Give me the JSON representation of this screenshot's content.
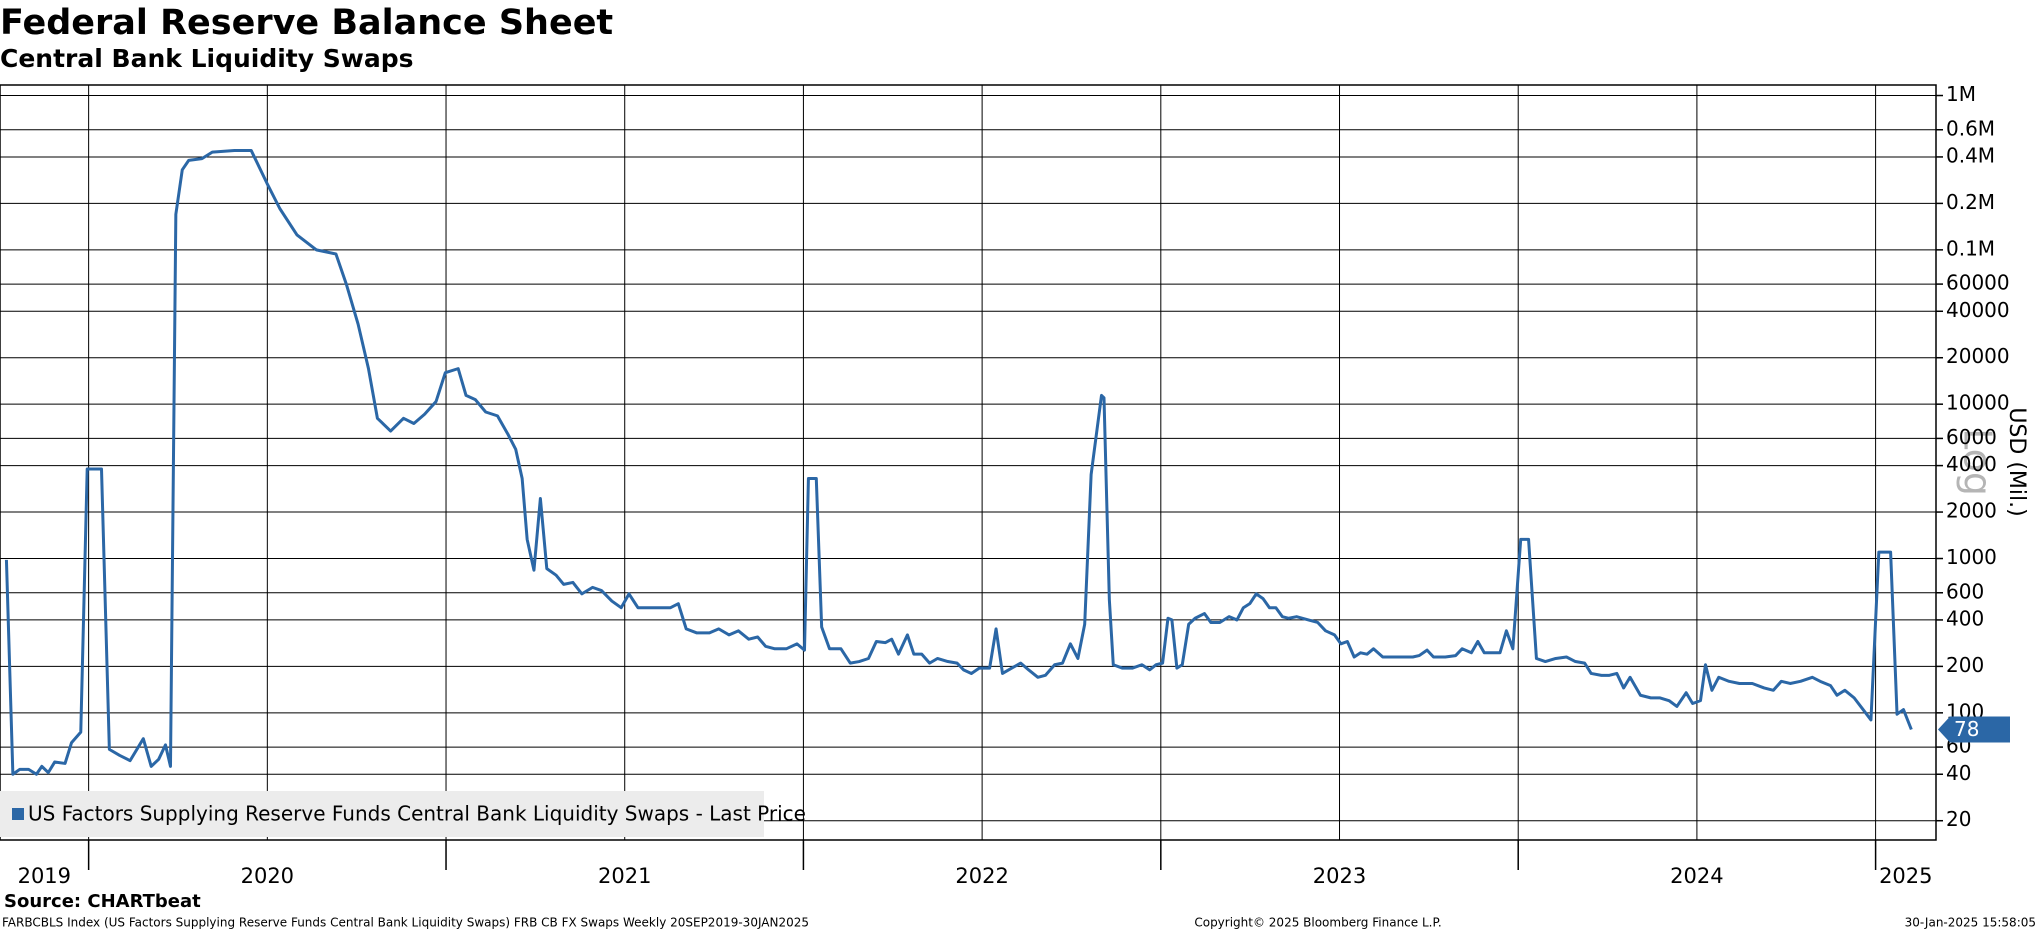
{
  "chart_data": {
    "type": "line",
    "title": "Federal Reserve Balance Sheet",
    "subtitle": "Central Bank Liquidity Swaps",
    "y_label": "USD (Mil.)",
    "scale_label": "Log",
    "log_scale": true,
    "grid": true,
    "legend_position": "lower-left",
    "source": "Source: CHARTbeat",
    "footer_left": "FARBCBLS Index (US Factors Supplying Reserve Funds Central Bank Liquidity Swaps) FRB CB FX Swaps  Weekly 20SEP2019-30JAN2025",
    "footer_center": "Copyright© 2025 Bloomberg Finance L.P.",
    "footer_right": "30-Jan-2025 15:58:05",
    "xlim": [
      2019.752,
      2025.169
    ],
    "xgrid": [
      2020,
      2020.5,
      2021,
      2021.5,
      2022,
      2022.5,
      2023,
      2023.5,
      2024,
      2024.5,
      2025
    ],
    "years": [
      "2019",
      "2020",
      "2021",
      "2022",
      "2023",
      "2024",
      "2025"
    ],
    "ylim": [
      15,
      1170000
    ],
    "yticks": [
      {
        "value": 1000000,
        "label": "1M"
      },
      {
        "value": 600000,
        "label": "0.6M"
      },
      {
        "value": 400000,
        "label": "0.4M"
      },
      {
        "value": 200000,
        "label": "0.2M"
      },
      {
        "value": 100000,
        "label": "0.1M"
      },
      60000,
      40000,
      20000,
      10000,
      6000,
      4000,
      2000,
      1000,
      600,
      400,
      200,
      100,
      60,
      40,
      20
    ],
    "series": [
      {
        "name": "US Factors Supplying Reserve Funds Central Bank Liquidity Swaps - Last Price",
        "color": "#2b67a6",
        "x": [
          2019.77,
          2019.788,
          2019.807,
          2019.832,
          2019.854,
          2019.869,
          2019.887,
          2019.905,
          2019.934,
          2019.952,
          2019.978,
          2019.996,
          2020.036,
          2020.058,
          2020.087,
          2020.116,
          2020.153,
          2020.175,
          2020.196,
          2020.215,
          2020.229,
          2020.244,
          2020.262,
          2020.28,
          2020.317,
          2020.346,
          2020.408,
          2020.455,
          2020.499,
          2020.535,
          2020.583,
          2020.637,
          2020.692,
          2020.721,
          2020.754,
          2020.783,
          2020.808,
          2020.845,
          2020.881,
          2020.91,
          2020.94,
          2020.972,
          2020.998,
          2021.034,
          2021.056,
          2021.082,
          2021.111,
          2021.144,
          2021.173,
          2021.195,
          2021.213,
          2021.227,
          2021.246,
          2021.264,
          2021.282,
          2021.308,
          2021.329,
          2021.355,
          2021.38,
          2021.41,
          2021.435,
          2021.464,
          2021.49,
          2021.512,
          2021.537,
          2021.566,
          2021.599,
          2021.628,
          2021.65,
          2021.672,
          2021.701,
          2021.737,
          2021.763,
          2021.792,
          2021.818,
          2021.847,
          2021.872,
          2021.894,
          2021.92,
          2021.952,
          2021.982,
          2022.003,
          2022.014,
          2022.036,
          2022.051,
          2022.073,
          2022.105,
          2022.131,
          2022.156,
          2022.182,
          2022.204,
          2022.229,
          2022.247,
          2022.266,
          2022.291,
          2022.309,
          2022.331,
          2022.353,
          2022.375,
          2022.404,
          2022.43,
          2022.448,
          2022.47,
          2022.492,
          2022.521,
          2022.539,
          2022.557,
          2022.583,
          2022.608,
          2022.63,
          2022.656,
          2022.677,
          2022.703,
          2022.725,
          2022.747,
          2022.768,
          2022.787,
          2022.805,
          2022.834,
          2022.841,
          2022.856,
          2022.867,
          2022.892,
          2022.921,
          2022.947,
          2022.969,
          2022.987,
          2023.005,
          2023.02,
          2023.031,
          2023.045,
          2023.06,
          2023.078,
          2023.096,
          2023.122,
          2023.14,
          2023.165,
          2023.191,
          2023.213,
          2023.231,
          2023.249,
          2023.267,
          2023.286,
          2023.304,
          2023.322,
          2023.34,
          2023.358,
          2023.38,
          2023.413,
          2023.439,
          2023.461,
          2023.486,
          2023.504,
          2023.522,
          2023.541,
          2023.559,
          2023.577,
          2023.595,
          2023.621,
          2023.65,
          2023.679,
          2023.705,
          2023.723,
          2023.745,
          2023.763,
          2023.796,
          2023.825,
          2023.843,
          2023.869,
          2023.887,
          2023.905,
          2023.927,
          2023.949,
          2023.967,
          2023.985,
          2024.007,
          2024.029,
          2024.051,
          2024.076,
          2024.105,
          2024.135,
          2024.16,
          2024.186,
          2024.204,
          2024.233,
          2024.255,
          2024.276,
          2024.295,
          2024.313,
          2024.342,
          2024.371,
          2024.397,
          2024.422,
          2024.444,
          2024.47,
          2024.488,
          2024.51,
          2024.524,
          2024.542,
          2024.561,
          2024.59,
          2024.619,
          2024.655,
          2024.688,
          2024.714,
          2024.736,
          2024.761,
          2024.79,
          2024.823,
          2024.845,
          2024.874,
          2024.892,
          2024.914,
          2024.94,
          2024.965,
          2024.987,
          2025.009,
          2025.042,
          2025.06,
          2025.078,
          2025.1
        ],
        "values": [
          980,
          40,
          43,
          43,
          40,
          45,
          41,
          48,
          47,
          64,
          75,
          3800,
          3800,
          58,
          53,
          49,
          68,
          45,
          50,
          62,
          45,
          170000,
          330000,
          380000,
          390000,
          430000,
          440000,
          440000,
          270000,
          185000,
          125000,
          100000,
          94000,
          60000,
          33000,
          17000,
          8100,
          6700,
          8100,
          7500,
          8600,
          10400,
          16000,
          17000,
          11400,
          10700,
          8900,
          8400,
          6400,
          5100,
          3300,
          1330,
          840,
          2450,
          860,
          780,
          680,
          700,
          590,
          650,
          620,
          530,
          480,
          590,
          480,
          480,
          480,
          480,
          510,
          350,
          330,
          330,
          350,
          320,
          340,
          300,
          310,
          270,
          260,
          260,
          280,
          255,
          3300,
          3300,
          360,
          260,
          260,
          210,
          215,
          225,
          290,
          285,
          300,
          240,
          320,
          240,
          240,
          210,
          225,
          215,
          210,
          190,
          180,
          195,
          195,
          350,
          180,
          195,
          210,
          190,
          170,
          175,
          205,
          210,
          280,
          225,
          375,
          3500,
          11400,
          11000,
          540,
          205,
          195,
          195,
          205,
          190,
          205,
          210,
          410,
          400,
          195,
          205,
          375,
          410,
          440,
          385,
          385,
          420,
          400,
          480,
          510,
          590,
          550,
          480,
          480,
          420,
          410,
          420,
          400,
          385,
          340,
          320,
          280,
          290,
          230,
          245,
          240,
          260,
          230,
          230,
          230,
          230,
          235,
          255,
          230,
          230,
          235,
          260,
          245,
          290,
          245,
          245,
          245,
          340,
          260,
          1330,
          1330,
          225,
          215,
          225,
          230,
          215,
          210,
          180,
          175,
          175,
          180,
          145,
          170,
          130,
          125,
          125,
          120,
          110,
          135,
          115,
          120,
          205,
          140,
          170,
          160,
          155,
          155,
          145,
          140,
          160,
          155,
          160,
          170,
          160,
          150,
          130,
          140,
          125,
          105,
          90,
          1100,
          1100,
          98,
          105,
          78
        ]
      }
    ]
  }
}
